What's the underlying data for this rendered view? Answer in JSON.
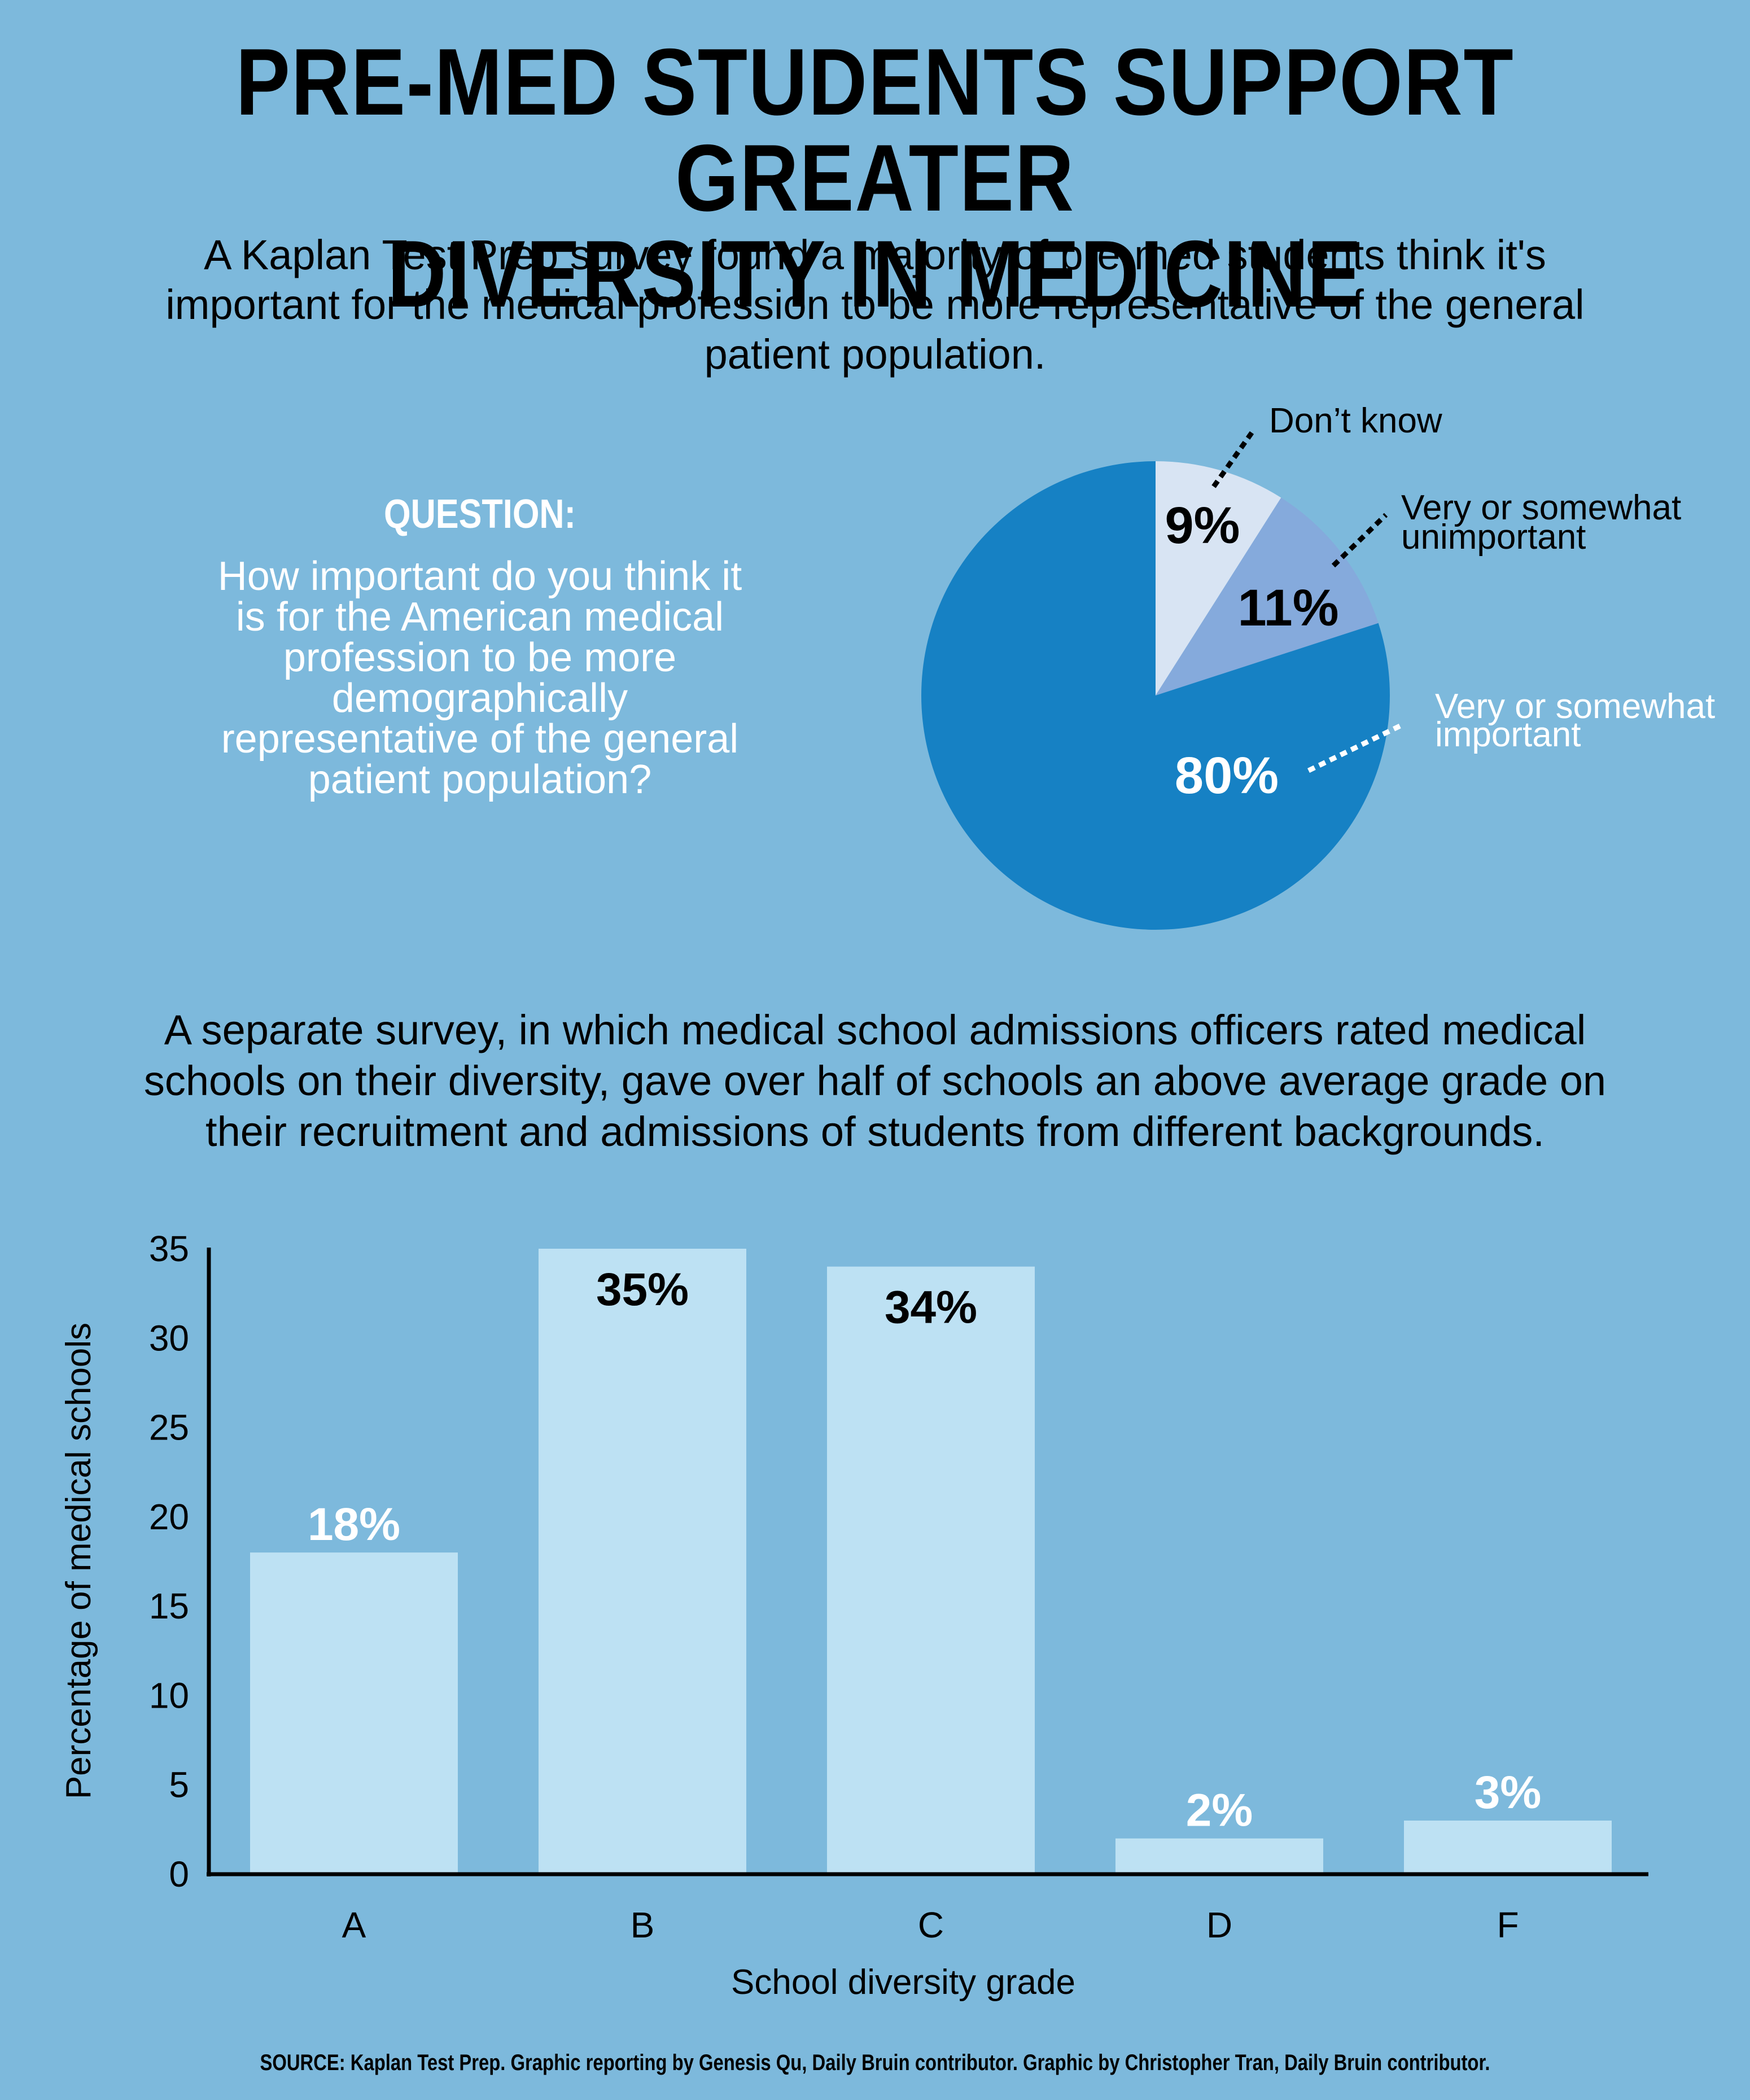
{
  "title_line1": "PRE-MED STUDENTS SUPPORT GREATER",
  "title_line2": "DIVERSITY IN MEDICINE",
  "intro_line1": "A Kaplan Test Prep survey found a majority of pre-med students think it's",
  "intro_line2": "important for the medical profession to be more representative of the general",
  "intro_line3": "patient population.",
  "question_label": "QUESTION:",
  "question_lines": [
    "How important do you think it",
    "is for the American medical",
    "profession to be more",
    "demographically",
    "representative of the general",
    "patient population?"
  ],
  "survey2_line1": "A separate survey, in which medical school admissions officers rated medical",
  "survey2_line2": "schools on their diversity, gave over half of schools an above average grade on",
  "survey2_line3": "their recruitment and admissions of students from different backgrounds.",
  "source": "SOURCE: Kaplan Test Prep. Graphic reporting by Genesis Qu, Daily Bruin contributor. Graphic by Christopher Tran, Daily Bruin contributor.",
  "colors": {
    "background": "#7db9dc",
    "pie_dont_know": "#d8e4f3",
    "pie_unimportant": "#85aadc",
    "pie_important": "#1681c4",
    "bar": "#bde1f3"
  },
  "chart_data": [
    {
      "type": "pie",
      "title": "",
      "slices": [
        {
          "label_line1": "Don’t know",
          "label_line2": "",
          "value": 9,
          "value_label": "9%"
        },
        {
          "label_line1": "Very or somewhat",
          "label_line2": "unimportant",
          "value": 11,
          "value_label": "11%"
        },
        {
          "label_line1": "Very or somewhat",
          "label_line2": "important",
          "value": 80,
          "value_label": "80%"
        }
      ]
    },
    {
      "type": "bar",
      "title": "",
      "categories": [
        "A",
        "B",
        "C",
        "D",
        "F"
      ],
      "values": [
        18,
        35,
        34,
        2,
        3
      ],
      "value_labels": [
        "18%",
        "35%",
        "34%",
        "2%",
        "3%"
      ],
      "xlabel": "School diversity grade",
      "ylabel": "Percentage of medical schools",
      "ylim": [
        0,
        35
      ],
      "yticks": [
        "0",
        "5",
        "10",
        "15",
        "20",
        "25",
        "30",
        "35"
      ],
      "grid": false
    }
  ]
}
